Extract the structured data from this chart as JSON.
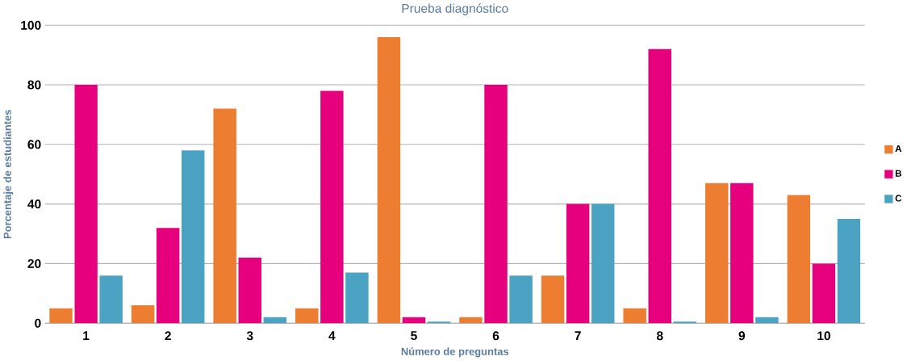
{
  "chart_data": {
    "type": "bar",
    "title": "Prueba diagnóstico",
    "xlabel": "Número de preguntas",
    "ylabel": "Porcentaje de estudiantes",
    "categories": [
      "1",
      "2",
      "3",
      "4",
      "5",
      "6",
      "7",
      "8",
      "9",
      "10"
    ],
    "series": [
      {
        "name": "A",
        "color": "#ed7d31",
        "values": [
          5,
          6,
          72,
          5,
          96,
          2,
          16,
          5,
          47,
          43
        ]
      },
      {
        "name": "B",
        "color": "#e6007e",
        "values": [
          80,
          32,
          22,
          78,
          2,
          80,
          40,
          92,
          47,
          20
        ]
      },
      {
        "name": "C",
        "color": "#4ba3c3",
        "values": [
          16,
          58,
          2,
          17,
          0.5,
          16,
          40,
          0.5,
          2,
          35
        ]
      }
    ],
    "ylim": [
      0,
      100
    ],
    "yticks": [
      0,
      20,
      40,
      60,
      80,
      100
    ],
    "grid": "y",
    "legend": "right"
  }
}
